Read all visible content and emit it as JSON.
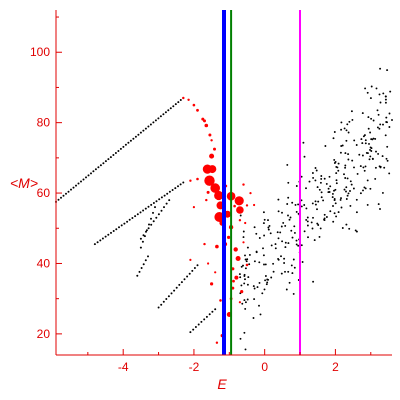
{
  "chart_data": {
    "type": "scatter",
    "title": "",
    "xlabel": "E",
    "ylabel": "<M>",
    "xlim": [
      -5.9,
      3.6
    ],
    "ylim": [
      14,
      112
    ],
    "xticks": [
      -4,
      -2,
      0,
      2
    ],
    "yticks": [
      20,
      40,
      60,
      80,
      100
    ],
    "grid": false,
    "legend": "none",
    "colors": {
      "axis": "#e00000",
      "black_points": "#000000",
      "red_points": "#ff0000",
      "line_blue": "#0000ff",
      "line_green": "#008000",
      "line_magenta": "#ff00ff"
    },
    "vertical_lines": [
      {
        "x": -1.15,
        "color": "#0000ff"
      },
      {
        "x": -0.95,
        "color": "#008000"
      },
      {
        "x": 1.0,
        "color": "#ff00ff"
      }
    ],
    "curves": [
      {
        "x0": -5.9,
        "y0": 57.5,
        "x1": -2.3,
        "y1": 87,
        "n": 52
      },
      {
        "x0": -4.8,
        "y0": 45.5,
        "x1": -2.3,
        "y1": 63,
        "n": 34
      },
      {
        "x0": -3.6,
        "y0": 36.5,
        "x1": -3.3,
        "y1": 42,
        "n": 6
      },
      {
        "x0": -3.5,
        "y0": 47,
        "x1": -2.7,
        "y1": 58,
        "n": 12
      },
      {
        "x0": -3.5,
        "y0": 44.5,
        "x1": -3.1,
        "y1": 56,
        "n": 8
      },
      {
        "x0": -3.0,
        "y0": 27.5,
        "x1": -1.9,
        "y1": 39.5,
        "n": 16
      },
      {
        "x0": -2.1,
        "y0": 20.5,
        "x1": -1.4,
        "y1": 27,
        "n": 10
      }
    ],
    "red_points": [
      [
        -2.3,
        87.0,
        1.2
      ],
      [
        -2.15,
        86.5,
        1.2
      ],
      [
        -2.0,
        85.0,
        1.3
      ],
      [
        -1.9,
        83.5,
        1.4
      ],
      [
        -1.75,
        81.0,
        1.5
      ],
      [
        -1.7,
        80.5,
        1.5
      ],
      [
        -1.65,
        79.2,
        1.8
      ],
      [
        -1.55,
        76.5,
        1.5
      ],
      [
        -1.5,
        75.0,
        1.2
      ],
      [
        -1.42,
        72.5,
        1.5
      ],
      [
        -1.5,
        70.5,
        2.5
      ],
      [
        -1.62,
        66.8,
        4.6
      ],
      [
        -1.48,
        66.8,
        4.0
      ],
      [
        -1.56,
        63.5,
        5.2
      ],
      [
        -1.4,
        61.4,
        4.8
      ],
      [
        -1.3,
        59.3,
        4.6
      ],
      [
        -0.95,
        59.1,
        4.3
      ],
      [
        -0.72,
        57.8,
        4.6
      ],
      [
        -0.7,
        55.2,
        3.8
      ],
      [
        -1.25,
        56.5,
        4.0
      ],
      [
        -1.28,
        53.2,
        5.0
      ],
      [
        -1.05,
        54.0,
        3.5
      ],
      [
        -1.2,
        51.5,
        2.8
      ],
      [
        -1.12,
        45.5,
        2.0
      ],
      [
        -0.82,
        44.0,
        2.2
      ],
      [
        -0.75,
        41.4,
        2.5
      ],
      [
        -1.35,
        44.8,
        1.8
      ],
      [
        -1.7,
        45.5,
        1.2
      ],
      [
        -2.1,
        41.0,
        1.1
      ],
      [
        -0.8,
        36.0,
        2.0
      ],
      [
        -0.9,
        33.0,
        1.5
      ],
      [
        -0.65,
        32.0,
        1.6
      ],
      [
        -0.95,
        30.0,
        1.4
      ],
      [
        -1.0,
        25.5,
        2.5
      ],
      [
        -1.2,
        19.5,
        1.6
      ],
      [
        -1.35,
        17.5,
        1.2
      ],
      [
        -1.5,
        34.2,
        1.6
      ],
      [
        -0.9,
        38.5,
        1.6
      ],
      [
        -0.5,
        39.6,
        1.3
      ],
      [
        -0.95,
        50.3,
        2.2
      ],
      [
        -2.0,
        56.0,
        1.1
      ],
      [
        -2.1,
        63.5,
        1.2
      ],
      [
        -1.9,
        64.0,
        1.3
      ],
      [
        -0.6,
        62.4,
        1.2
      ],
      [
        -0.4,
        60.0,
        1.1
      ],
      [
        -0.5,
        56.5,
        1.2
      ],
      [
        -1.6,
        60.2,
        1.5
      ],
      [
        -1.1,
        62.0,
        1.4
      ],
      [
        -0.55,
        51.5,
        1.1
      ],
      [
        -0.6,
        46.0,
        1.1
      ],
      [
        -1.6,
        40.0,
        1.1
      ],
      [
        -1.4,
        37.5,
        1.1
      ],
      [
        -1.65,
        58.0,
        1.2
      ],
      [
        -0.85,
        56.3,
        1.3
      ],
      [
        -0.7,
        52.3,
        1.2
      ],
      [
        -0.3,
        56.6,
        1.1
      ],
      [
        -1.02,
        47.4,
        1.6
      ],
      [
        -0.88,
        35.0,
        1.4
      ],
      [
        -0.7,
        29.0,
        1.1
      ],
      [
        -1.25,
        29.5,
        1.3
      ]
    ],
    "cloud": {
      "count": 340,
      "x_range": [
        -0.7,
        3.6
      ],
      "center": [
        1.3,
        55
      ],
      "slope": 10,
      "spread": 11,
      "seed": 7
    }
  }
}
